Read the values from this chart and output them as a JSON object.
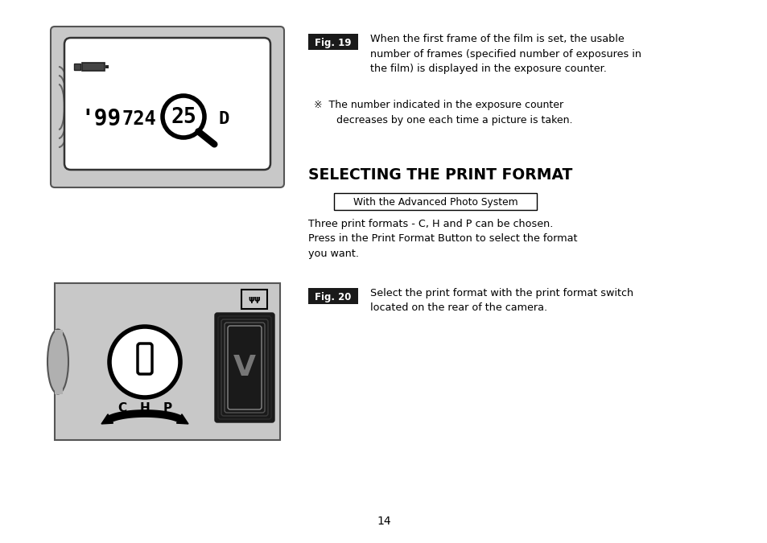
{
  "page_bg": "#ffffff",
  "page_number": "14",
  "fig19_label": "Fig. 19",
  "fig19_bg": "#1a1a1a",
  "fig19_text_color": "#ffffff",
  "fig20_label": "Fig. 20",
  "fig20_bg": "#1a1a1a",
  "fig20_text_color": "#ffffff",
  "section_title": "SELECTING THE PRINT FORMAT",
  "box_label": "With the Advanced Photo System",
  "para1_fig19": "When the first frame of the film is set, the usable\nnumber of frames (specified number of exposures in\nthe film) is displayed in the exposure counter.",
  "para2_fig19": "※  The number indicated in the exposure counter\n       decreases by one each time a picture is taken.",
  "para1_section": "Three print formats - C, H and P can be chosen.\nPress in the Print Format Button to select the format\nyou want.",
  "para1_fig20": "Select the print format with the print format switch\nlocated on the rear of the camera.",
  "gray_light": "#c8c8c8",
  "gray_mid": "#b0b0b0",
  "gray_dark": "#888888",
  "white": "#ffffff",
  "black": "#000000"
}
